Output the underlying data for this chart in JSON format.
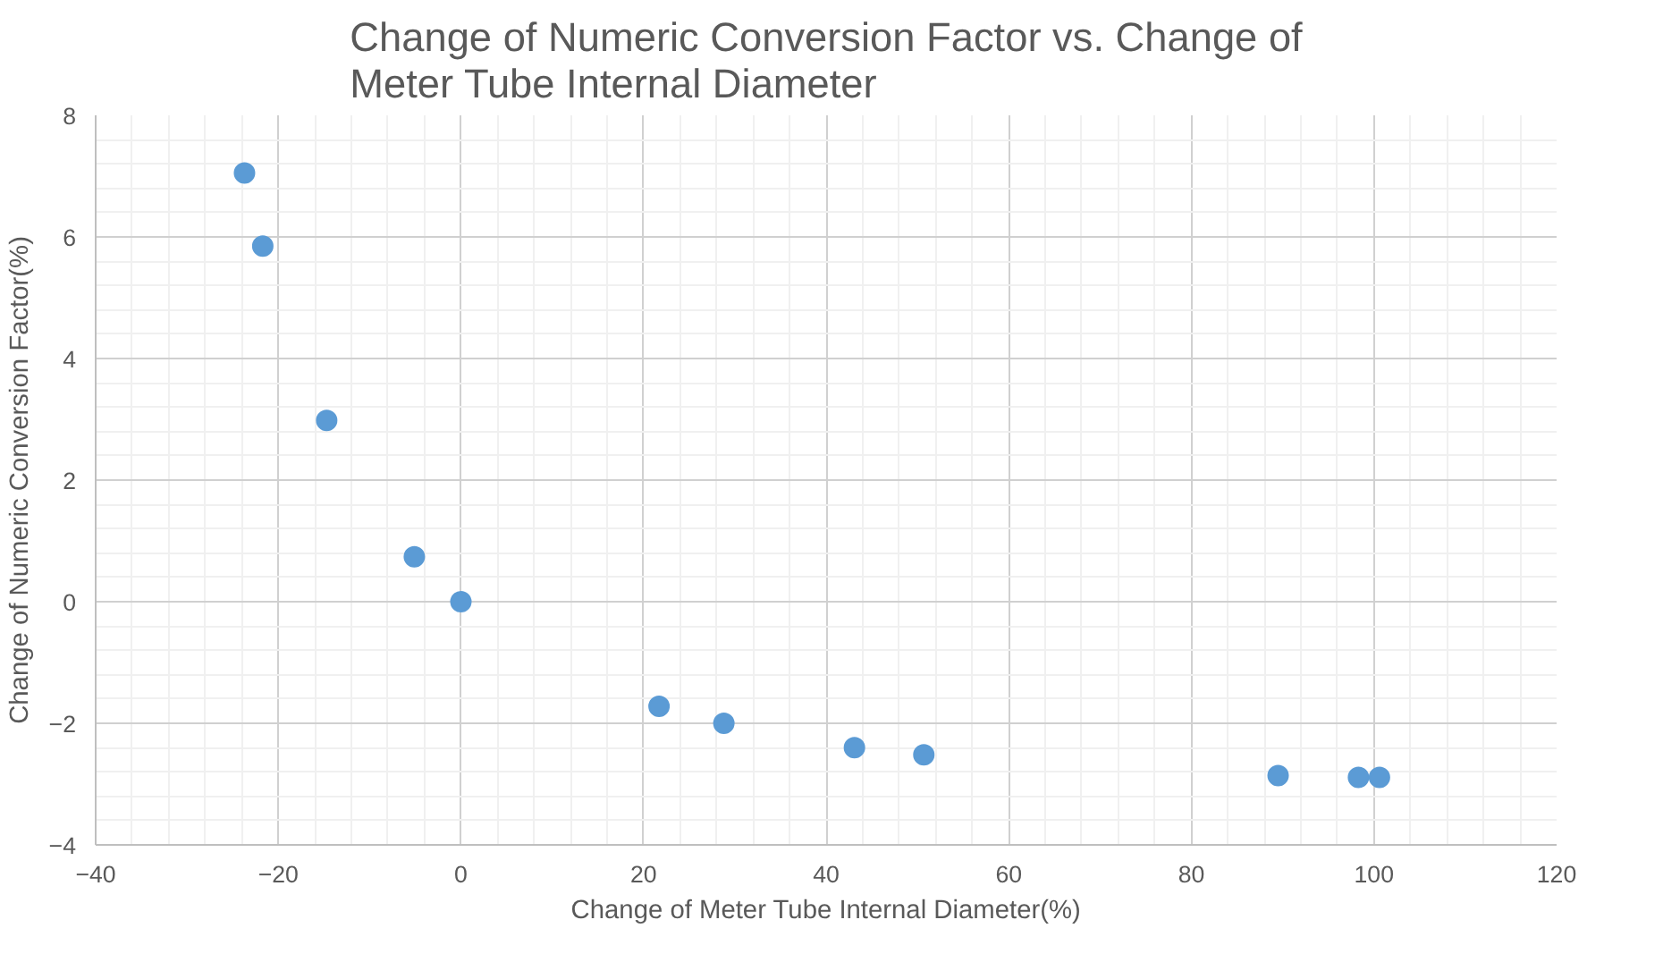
{
  "chart_data": {
    "type": "scatter",
    "title": "Change of Numeric Conversion Factor vs. Change of Meter Tube Internal Diameter",
    "xlabel": "Change of Meter Tube Internal Diameter(%)",
    "ylabel": "Change of Numeric Conversion Factor(%)",
    "x": [
      -23.7,
      -21.7,
      -14.7,
      -5.1,
      0,
      21.7,
      28.8,
      43.1,
      50.7,
      89.5,
      98.3,
      100.6
    ],
    "series": [
      {
        "color": "#5b9bd5",
        "values": [
          7.05,
          5.85,
          2.98,
          0.74,
          0,
          -1.72,
          -2.0,
          -2.4,
          -2.52,
          -2.86,
          -2.89,
          -2.89
        ]
      }
    ],
    "xlim": [
      -40,
      120
    ],
    "ylim": [
      -4,
      8
    ],
    "xticks": [
      -40,
      -20,
      0,
      20,
      40,
      60,
      80,
      100,
      120
    ],
    "yticks": [
      -4,
      -2,
      0,
      2,
      4,
      6,
      8
    ],
    "grid": true,
    "marker": "circle"
  }
}
